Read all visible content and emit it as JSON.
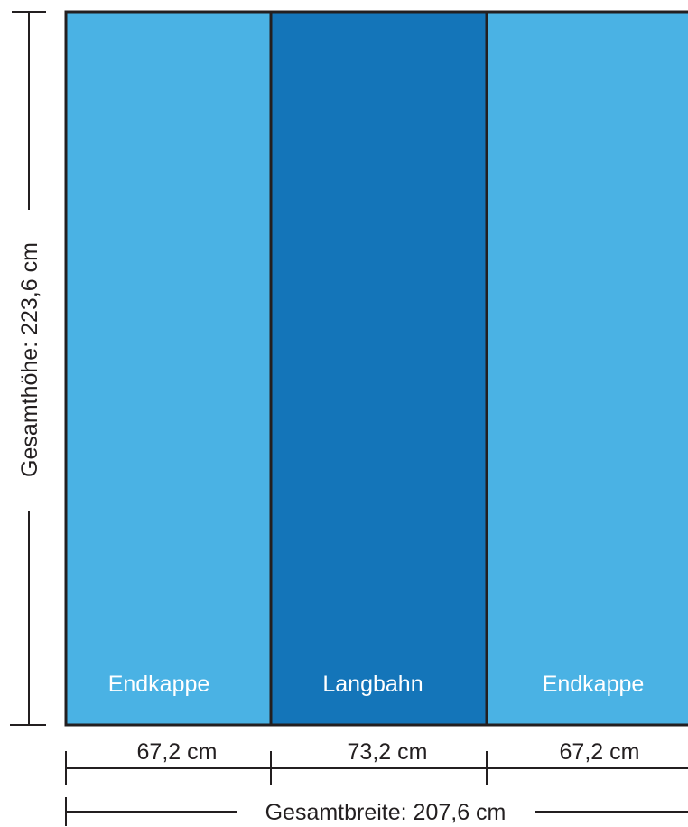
{
  "panels": [
    {
      "label": "Endkappe",
      "width_label": "67,2 cm",
      "color": "#4ab2e4"
    },
    {
      "label": "Langbahn",
      "width_label": "73,2 cm",
      "color": "#1475b9"
    },
    {
      "label": "Endkappe",
      "width_label": "67,2 cm",
      "color": "#4ab2e4"
    }
  ],
  "total_height_label": "Gesamthöhe: 223,6 cm",
  "total_width_label": "Gesamtbreite: 207,6 cm",
  "colors": {
    "outline": "#231f20",
    "label_text": "#ffffff",
    "dimension_text": "#231f20"
  }
}
